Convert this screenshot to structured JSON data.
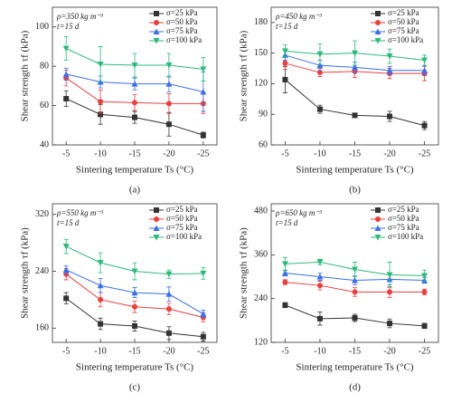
{
  "chart_data": [
    {
      "type": "line",
      "panel_label": "(a)",
      "annotations": [
        "ρ=350 kg m⁻³",
        "t=15 d"
      ],
      "y_label": "Shear strength τf (kPa)",
      "x_label": "Sintering temperature Ts (°C)",
      "x": [
        -5,
        -10,
        -15,
        -20,
        -25
      ],
      "xlim": [
        -3,
        -27
      ],
      "xticks": [
        -5,
        -10,
        -15,
        -20,
        -25
      ],
      "ylim": [
        40,
        110
      ],
      "yticks": [
        40,
        60,
        80,
        100
      ],
      "series": [
        {
          "name": "σ=25 kPa",
          "color": "#333333",
          "values": [
            63.5,
            55.5,
            54,
            50.5,
            45
          ],
          "errors": [
            4,
            5,
            3,
            6,
            1.5
          ]
        },
        {
          "name": "σ=50 kPa",
          "color": "#e8403f",
          "values": [
            74,
            62,
            61.5,
            61,
            61
          ],
          "errors": [
            4,
            6,
            4,
            5,
            5
          ]
        },
        {
          "name": "σ=75 kPa",
          "color": "#3b6fe8",
          "values": [
            76,
            72,
            71,
            71,
            67
          ],
          "errors": [
            3,
            3,
            3,
            4,
            10
          ]
        },
        {
          "name": "σ=100 kPa",
          "color": "#2db97a",
          "values": [
            89,
            81,
            80.5,
            80.5,
            78.5
          ],
          "errors": [
            6,
            9,
            6,
            6,
            6
          ]
        }
      ]
    },
    {
      "type": "line",
      "panel_label": "(b)",
      "annotations": [
        "ρ=450 kg m⁻³",
        "t=15 d"
      ],
      "y_label": "Shear strength τf (kPa)",
      "x_label": "Sintering temperature Ts (°C)",
      "x": [
        -5,
        -10,
        -15,
        -20,
        -25
      ],
      "xlim": [
        -3,
        -27
      ],
      "xticks": [
        -5,
        -10,
        -15,
        -20,
        -25
      ],
      "ylim": [
        60,
        195
      ],
      "yticks": [
        60,
        90,
        120,
        150,
        180
      ],
      "series": [
        {
          "name": "σ=25 kPa",
          "color": "#333333",
          "values": [
            124,
            95,
            89,
            88,
            79
          ],
          "errors": [
            13,
            4,
            2,
            5,
            4
          ]
        },
        {
          "name": "σ=50 kPa",
          "color": "#e8403f",
          "values": [
            140,
            131,
            132,
            130,
            130
          ],
          "errors": [
            6,
            4,
            6,
            5,
            7
          ]
        },
        {
          "name": "σ=75 kPa",
          "color": "#3b6fe8",
          "values": [
            148,
            138,
            136,
            133,
            133
          ],
          "errors": [
            5,
            5,
            5,
            4,
            5
          ]
        },
        {
          "name": "σ=100 kPa",
          "color": "#2db97a",
          "values": [
            152,
            149,
            150,
            147,
            143
          ],
          "errors": [
            6,
            10,
            12,
            7,
            5
          ]
        }
      ]
    },
    {
      "type": "line",
      "panel_label": "(c)",
      "annotations": [
        "ρ=550 kg m⁻³",
        "t=15 d"
      ],
      "y_label": "Shear strength τf (kPa)",
      "x_label": "Sintering temperature Ts (°C)",
      "x": [
        -5,
        -10,
        -15,
        -20,
        -25
      ],
      "xlim": [
        -3,
        -27
      ],
      "xticks": [
        -5,
        -10,
        -15,
        -20,
        -25
      ],
      "ylim": [
        140,
        335
      ],
      "yticks": [
        160,
        240,
        320
      ],
      "series": [
        {
          "name": "σ=25 kPa",
          "color": "#333333",
          "values": [
            202,
            166,
            163,
            153,
            148
          ],
          "errors": [
            8,
            8,
            7,
            9,
            6
          ]
        },
        {
          "name": "σ=50 kPa",
          "color": "#e8403f",
          "values": [
            236,
            200,
            190,
            187,
            175
          ],
          "errors": [
            8,
            10,
            8,
            8,
            6
          ]
        },
        {
          "name": "σ=75 kPa",
          "color": "#3b6fe8",
          "values": [
            242,
            220,
            210,
            208,
            180
          ],
          "errors": [
            6,
            10,
            7,
            10,
            5
          ]
        },
        {
          "name": "σ=100 kPa",
          "color": "#2db97a",
          "values": [
            275,
            252,
            240,
            236,
            237
          ],
          "errors": [
            10,
            14,
            12,
            6,
            8
          ]
        }
      ]
    },
    {
      "type": "line",
      "panel_label": "(d)",
      "annotations": [
        "ρ=650 kg m⁻³",
        "t=15 d"
      ],
      "y_label": "Shear strength τf (kPa)",
      "x_label": "Sintering temperature Ts (°C)",
      "x": [
        -5,
        -10,
        -15,
        -20,
        -25
      ],
      "xlim": [
        -3,
        -27
      ],
      "xticks": [
        -5,
        -10,
        -15,
        -20,
        -25
      ],
      "ylim": [
        120,
        500
      ],
      "yticks": [
        120,
        240,
        360,
        480
      ],
      "series": [
        {
          "name": "σ=25 kPa",
          "color": "#333333",
          "values": [
            222,
            185,
            187,
            172,
            165
          ],
          "errors": [
            7,
            18,
            10,
            12,
            7
          ]
        },
        {
          "name": "σ=50 kPa",
          "color": "#e8403f",
          "values": [
            285,
            276,
            258,
            258,
            258
          ],
          "errors": [
            7,
            12,
            12,
            15,
            8
          ]
        },
        {
          "name": "σ=75 kPa",
          "color": "#3b6fe8",
          "values": [
            310,
            300,
            290,
            293,
            290
          ],
          "errors": [
            8,
            10,
            12,
            15,
            8
          ]
        },
        {
          "name": "σ=100 kPa",
          "color": "#2db97a",
          "values": [
            335,
            340,
            320,
            305,
            303
          ],
          "errors": [
            18,
            8,
            20,
            35,
            15
          ]
        }
      ]
    }
  ]
}
